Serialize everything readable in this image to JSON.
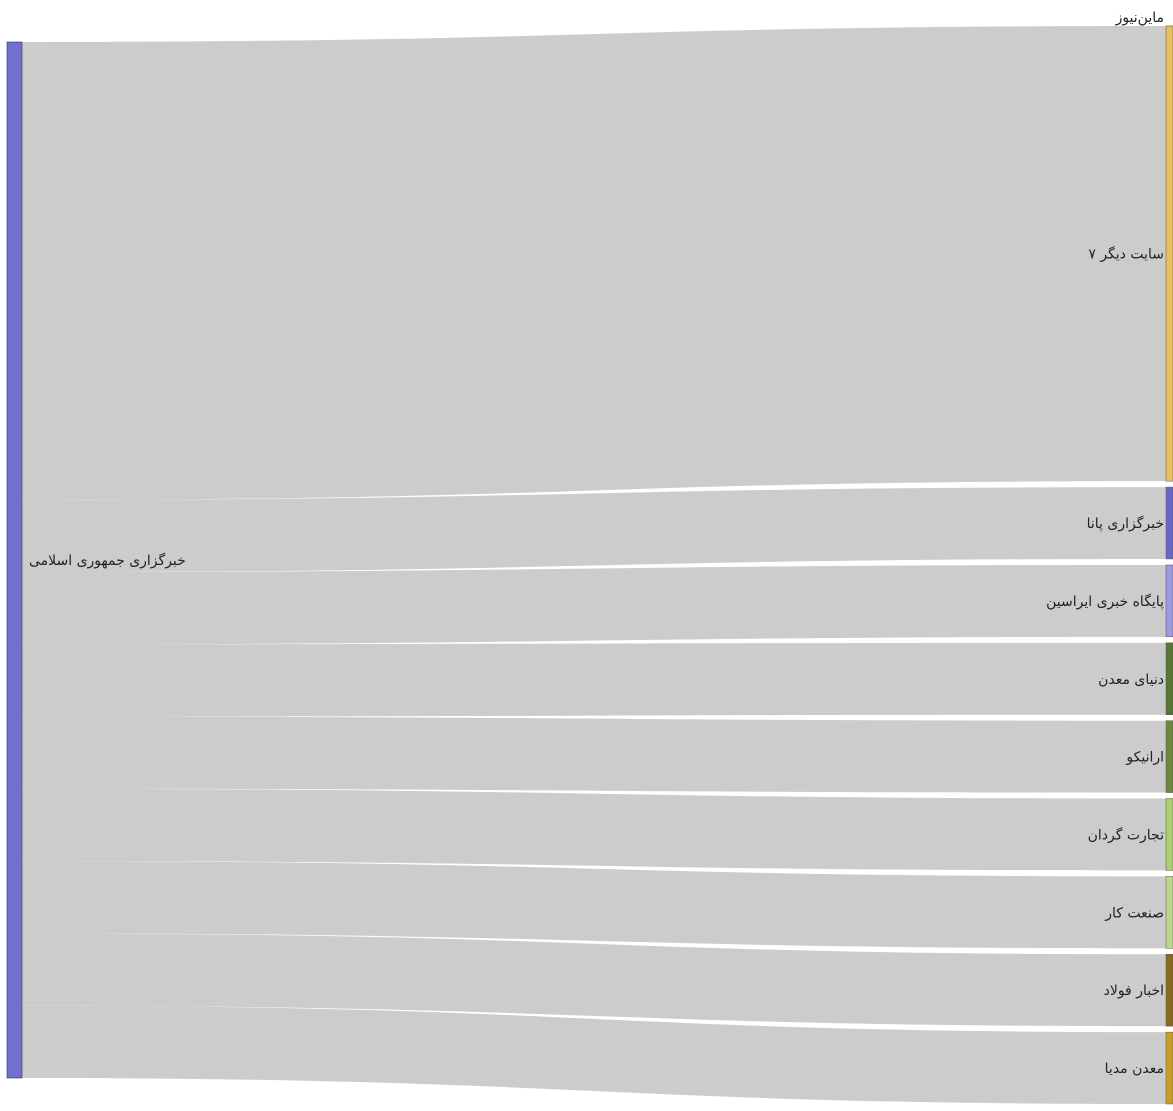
{
  "chart_data": {
    "type": "sankey",
    "source": {
      "id": "irna",
      "label": "خبرگزاری جمهوری اسلامی",
      "color": "#7070d0"
    },
    "targets": [
      {
        "id": "mine-news",
        "label": "ماین‌نیوز",
        "color": "#e8c060",
        "value": 0
      },
      {
        "id": "other7",
        "label": "۷ سایت دیگر",
        "color": "#e8c060",
        "value": 38
      },
      {
        "id": "pana",
        "label": "خبرگزاری پانا",
        "color": "#6868c8",
        "value": 6
      },
      {
        "id": "irasin",
        "label": "پایگاه خبری ایراسین",
        "color": "#9a9ae0",
        "value": 6
      },
      {
        "id": "donya-madan",
        "label": "دنیای معدن",
        "color": "#557733",
        "value": 6
      },
      {
        "id": "eraniko",
        "label": "ارانیکو",
        "color": "#6b8a40",
        "value": 6
      },
      {
        "id": "tejarat-gardan",
        "label": "تجارت گردان",
        "color": "#a8d070",
        "value": 6
      },
      {
        "id": "sanat-kar",
        "label": "صنعت کار",
        "color": "#bcd890",
        "value": 6
      },
      {
        "id": "akhbar-foolad",
        "label": "اخبار فولاد",
        "color": "#8a6a20",
        "value": 6
      },
      {
        "id": "madan-media",
        "label": "معدن مدیا",
        "color": "#c8a028",
        "value": 6
      }
    ]
  }
}
